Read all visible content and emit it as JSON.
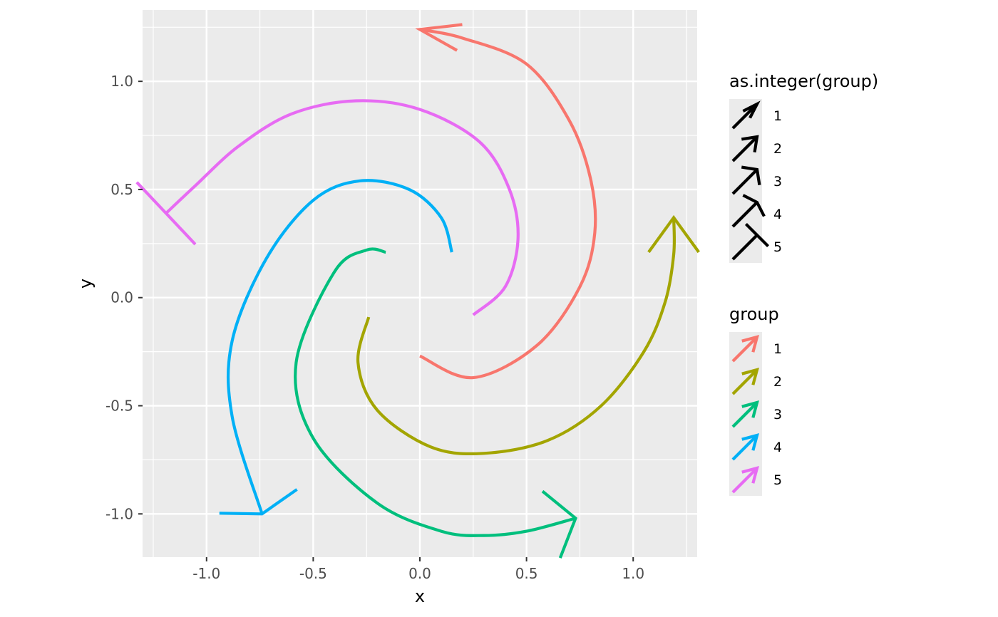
{
  "chart_data": {
    "type": "line",
    "title": "",
    "xlabel": "x",
    "ylabel": "y",
    "xlim": [
      -1.3,
      1.3
    ],
    "ylim": [
      -1.2,
      1.33
    ],
    "x_ticks": [
      -1.0,
      -0.5,
      0.0,
      0.5,
      1.0
    ],
    "x_tick_labels": [
      "-1.0",
      "-0.5",
      "0.0",
      "0.5",
      "1.0"
    ],
    "y_ticks": [
      -1.0,
      -0.5,
      0.0,
      0.5,
      1.0
    ],
    "y_tick_labels": [
      "-1.0",
      "-0.5",
      "0.0",
      "0.5",
      "1.0"
    ],
    "grid": true,
    "series": [
      {
        "name": "1",
        "color": "#F8766D",
        "points": [
          [
            0.0,
            -0.27
          ],
          [
            0.25,
            -0.37
          ],
          [
            0.55,
            -0.22
          ],
          [
            0.75,
            0.05
          ],
          [
            0.82,
            0.3
          ],
          [
            0.8,
            0.55
          ],
          [
            0.7,
            0.82
          ],
          [
            0.5,
            1.08
          ],
          [
            0.2,
            1.2
          ],
          [
            0.0,
            1.24
          ]
        ],
        "arrow_len": 0.2,
        "arrow_angle": 18
      },
      {
        "name": "2",
        "color": "#A3A500",
        "points": [
          [
            -0.24,
            -0.09
          ],
          [
            -0.29,
            -0.3
          ],
          [
            -0.2,
            -0.52
          ],
          [
            0.05,
            -0.69
          ],
          [
            0.3,
            -0.72
          ],
          [
            0.6,
            -0.66
          ],
          [
            0.85,
            -0.5
          ],
          [
            1.05,
            -0.25
          ],
          [
            1.15,
            -0.02
          ],
          [
            1.19,
            0.2
          ],
          [
            1.19,
            0.37
          ]
        ],
        "arrow_len": 0.2,
        "arrow_angle": 36
      },
      {
        "name": "3",
        "color": "#00BF7D",
        "points": [
          [
            -0.16,
            0.21
          ],
          [
            -0.25,
            0.22
          ],
          [
            -0.4,
            0.12
          ],
          [
            -0.58,
            -0.3
          ],
          [
            -0.5,
            -0.65
          ],
          [
            -0.2,
            -0.95
          ],
          [
            0.1,
            -1.08
          ],
          [
            0.3,
            -1.1
          ],
          [
            0.5,
            -1.08
          ],
          [
            0.73,
            -1.02
          ]
        ],
        "arrow_len": 0.2,
        "arrow_angle": 54
      },
      {
        "name": "4",
        "color": "#00B0F6",
        "points": [
          [
            0.15,
            0.21
          ],
          [
            0.1,
            0.37
          ],
          [
            -0.05,
            0.5
          ],
          [
            -0.28,
            0.54
          ],
          [
            -0.5,
            0.45
          ],
          [
            -0.72,
            0.18
          ],
          [
            -0.88,
            -0.2
          ],
          [
            -0.88,
            -0.55
          ],
          [
            -0.74,
            -1.0
          ]
        ],
        "arrow_len": 0.2,
        "arrow_angle": 72
      },
      {
        "name": "5",
        "color": "#E76BF3",
        "points": [
          [
            0.25,
            -0.08
          ],
          [
            0.4,
            0.05
          ],
          [
            0.46,
            0.27
          ],
          [
            0.42,
            0.5
          ],
          [
            0.28,
            0.72
          ],
          [
            0.0,
            0.87
          ],
          [
            -0.3,
            0.91
          ],
          [
            -0.6,
            0.85
          ],
          [
            -0.85,
            0.7
          ],
          [
            -1.05,
            0.52
          ],
          [
            -1.19,
            0.39
          ]
        ],
        "arrow_len": 0.2,
        "arrow_angle": 90
      }
    ],
    "legends": [
      {
        "title": "as.integer(group)",
        "entries": [
          {
            "label": "1",
            "color": "#000000",
            "arrow_angle": 18
          },
          {
            "label": "2",
            "color": "#000000",
            "arrow_angle": 36
          },
          {
            "label": "3",
            "color": "#000000",
            "arrow_angle": 54
          },
          {
            "label": "4",
            "color": "#000000",
            "arrow_angle": 72
          },
          {
            "label": "5",
            "color": "#000000",
            "arrow_angle": 90
          }
        ]
      },
      {
        "title": "group",
        "entries": [
          {
            "label": "1",
            "color": "#F8766D",
            "arrow_angle": 30
          },
          {
            "label": "2",
            "color": "#A3A500",
            "arrow_angle": 30
          },
          {
            "label": "3",
            "color": "#00BF7D",
            "arrow_angle": 30
          },
          {
            "label": "4",
            "color": "#00B0F6",
            "arrow_angle": 30
          },
          {
            "label": "5",
            "color": "#E76BF3",
            "arrow_angle": 30
          }
        ]
      }
    ],
    "legend_position": "right",
    "panel_background": "#EBEBEB",
    "grid_color": "#FFFFFF"
  }
}
